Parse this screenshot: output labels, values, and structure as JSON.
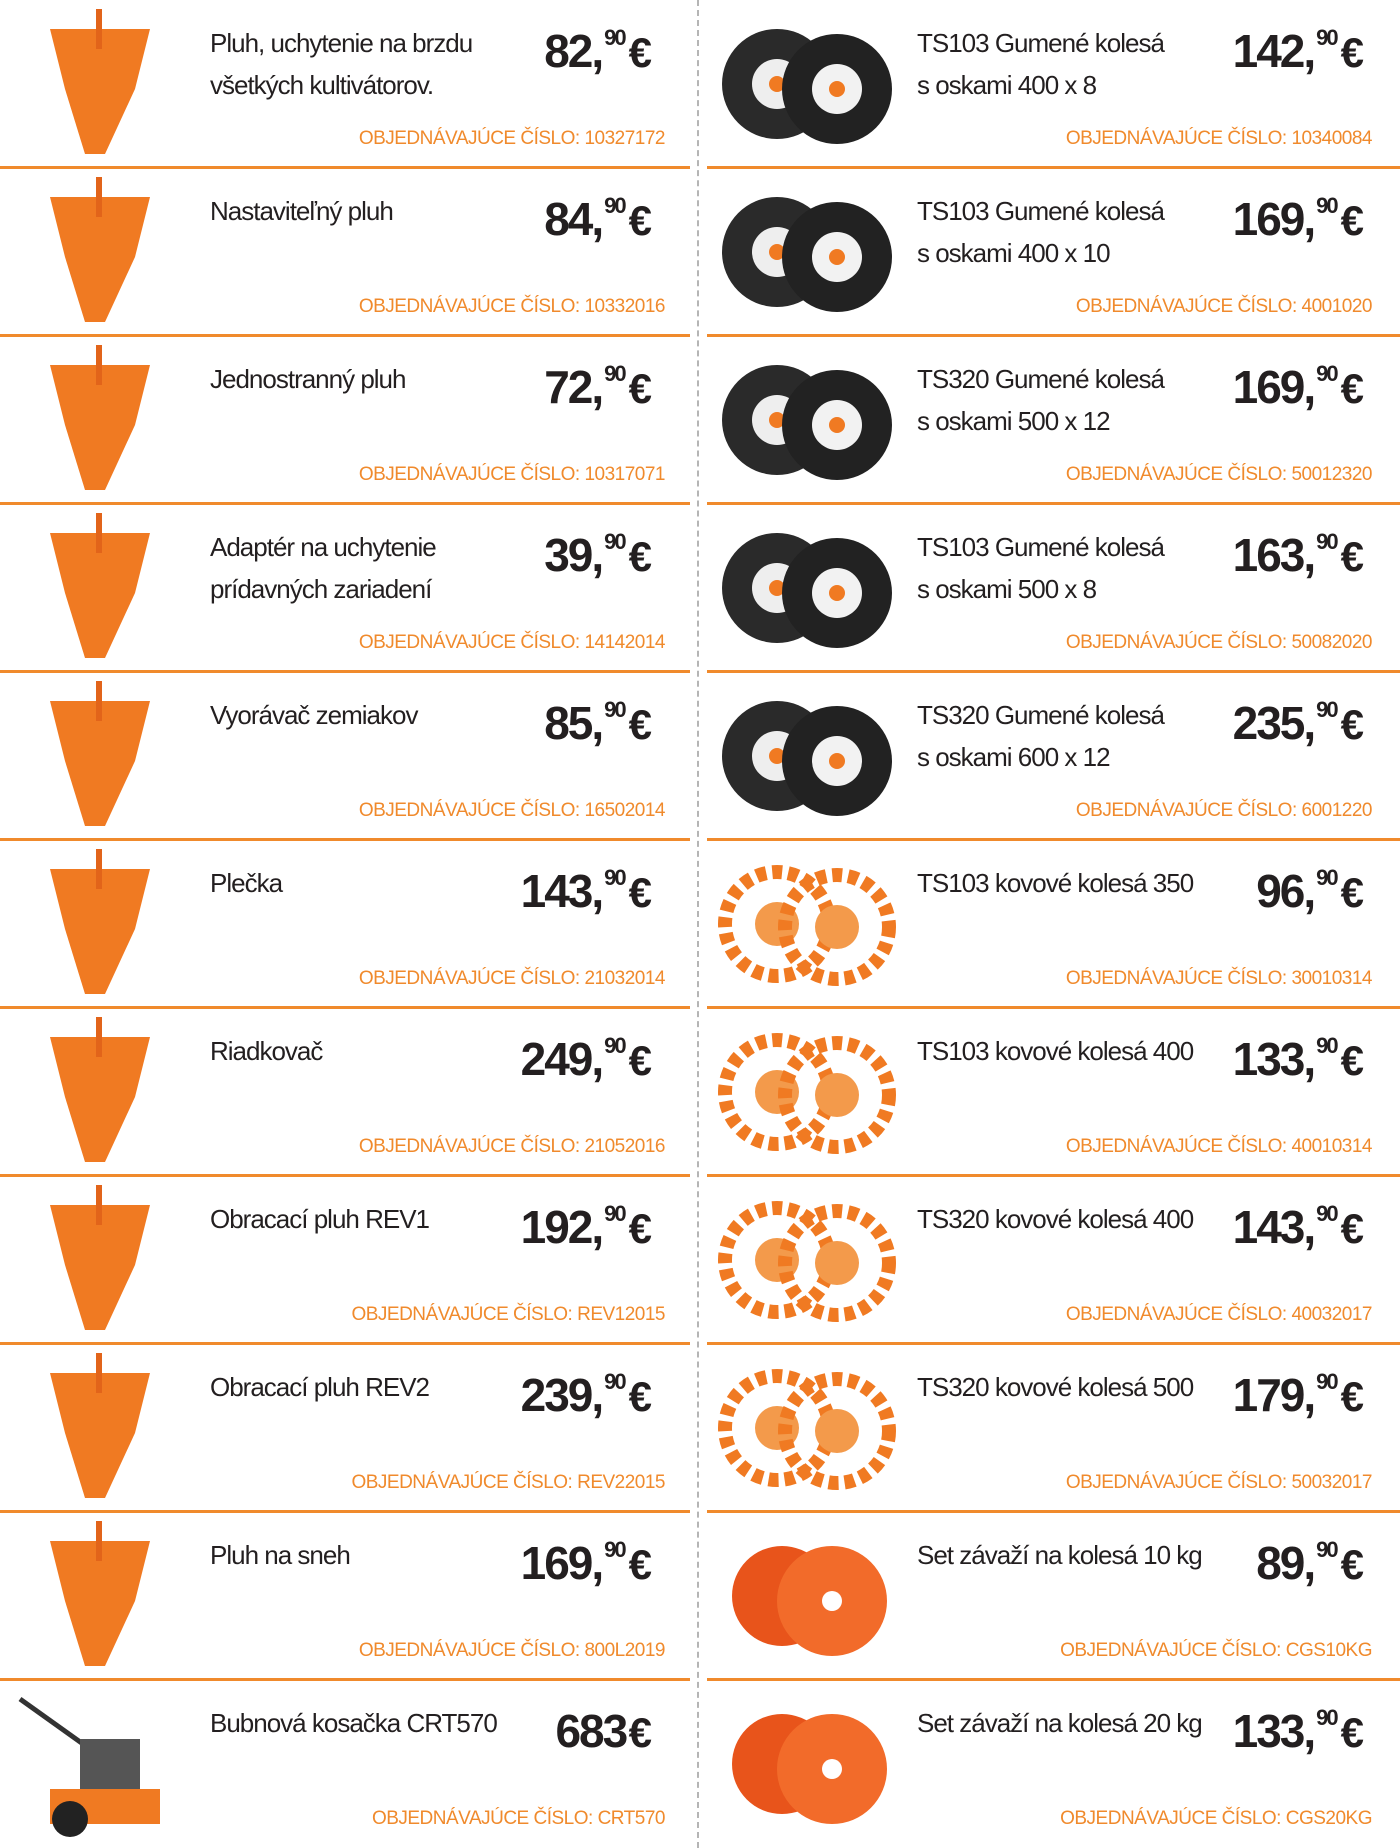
{
  "left": [
    {
      "name": [
        "Pluh, uchytenie na brzdu",
        "všetkých kultivátorov."
      ],
      "price": {
        "main": "82,",
        "cents": "90",
        "currency": "€"
      },
      "order": "OBJEDNÁVAJÚCE ČÍSLO: 10327172"
    },
    {
      "name": [
        "Nastaviteľný pluh"
      ],
      "price": {
        "main": "84,",
        "cents": "90",
        "currency": "€"
      },
      "order": "OBJEDNÁVAJÚCE ČÍSLO: 10332016"
    },
    {
      "name": [
        "Jednostranný pluh"
      ],
      "price": {
        "main": "72,",
        "cents": "90",
        "currency": "€"
      },
      "order": "OBJEDNÁVAJÚCE ČÍSLO: 10317071"
    },
    {
      "name": [
        "Adaptér na uchytenie",
        "prídavných zariadení"
      ],
      "price": {
        "main": "39,",
        "cents": "90",
        "currency": "€"
      },
      "order": "OBJEDNÁVAJÚCE ČÍSLO: 14142014"
    },
    {
      "name": [
        "Vyorávač zemiakov"
      ],
      "price": {
        "main": "85,",
        "cents": "90",
        "currency": "€"
      },
      "order": "OBJEDNÁVAJÚCE ČÍSLO: 16502014"
    },
    {
      "name": [
        "Plečka"
      ],
      "price": {
        "main": "143,",
        "cents": "90",
        "currency": "€"
      },
      "order": "OBJEDNÁVAJÚCE ČÍSLO: 21032014"
    },
    {
      "name": [
        "Riadkovač"
      ],
      "price": {
        "main": "249,",
        "cents": "90",
        "currency": "€"
      },
      "order": "OBJEDNÁVAJÚCE ČÍSLO: 21052016"
    },
    {
      "name": [
        "Obracací pluh REV1"
      ],
      "price": {
        "main": "192,",
        "cents": "90",
        "currency": "€"
      },
      "order": "OBJEDNÁVAJÚCE ČÍSLO: REV12015"
    },
    {
      "name": [
        "Obracací pluh REV2"
      ],
      "price": {
        "main": "239,",
        "cents": "90",
        "currency": "€"
      },
      "order": "OBJEDNÁVAJÚCE ČÍSLO: REV22015"
    },
    {
      "name": [
        "Pluh na sneh"
      ],
      "price": {
        "main": "169,",
        "cents": "90",
        "currency": "€"
      },
      "order": "OBJEDNÁVAJÚCE ČÍSLO: 800L2019"
    },
    {
      "name": [
        "Bubnová kosačka CRT570"
      ],
      "price": {
        "main": "683",
        "currency": "€"
      },
      "order": "OBJEDNÁVAJÚCE ČÍSLO: CRT570"
    }
  ],
  "right": [
    {
      "name": [
        "TS103 Gumené kolesá",
        "s oskami 400 x 8"
      ],
      "price": {
        "main": "142,",
        "cents": "90",
        "currency": "€"
      },
      "order": "OBJEDNÁVAJÚCE ČÍSLO:  10340084"
    },
    {
      "name": [
        "TS103 Gumené kolesá",
        "s oskami 400 x 10"
      ],
      "price": {
        "main": "169,",
        "cents": "90",
        "currency": "€"
      },
      "order": "OBJEDNÁVAJÚCE ČÍSLO: 4001020"
    },
    {
      "name": [
        "TS320 Gumené kolesá",
        "s oskami 500 x 12"
      ],
      "price": {
        "main": "169,",
        "cents": "90",
        "currency": "€"
      },
      "order": "OBJEDNÁVAJÚCE ČÍSLO: 50012320"
    },
    {
      "name": [
        "TS103 Gumené kolesá",
        "s oskami 500 x 8"
      ],
      "price": {
        "main": "163,",
        "cents": "90",
        "currency": "€"
      },
      "order": "OBJEDNÁVAJÚCE ČÍSLO: 50082020"
    },
    {
      "name": [
        "TS320 Gumené kolesá",
        "s oskami 600 x 12"
      ],
      "price": {
        "main": "235,",
        "cents": "90",
        "currency": "€"
      },
      "order": "OBJEDNÁVAJÚCE ČÍSLO: 6001220"
    },
    {
      "name": [
        "TS103 kovové kolesá 350"
      ],
      "price": {
        "main": "96,",
        "cents": "90",
        "currency": "€"
      },
      "order": "OBJEDNÁVAJÚCE ČÍSLO:  30010314"
    },
    {
      "name": [
        "TS103 kovové kolesá 400"
      ],
      "price": {
        "main": "133,",
        "cents": "90",
        "currency": "€"
      },
      "order": "OBJEDNÁVAJÚCE ČÍSLO: 40010314"
    },
    {
      "name": [
        "TS320 kovové kolesá 400"
      ],
      "price": {
        "main": "143,",
        "cents": "90",
        "currency": "€"
      },
      "order": "OBJEDNÁVAJÚCE ČÍSLO: 40032017"
    },
    {
      "name": [
        "TS320 kovové kolesá 500"
      ],
      "price": {
        "main": "179,",
        "cents": "90",
        "currency": "€"
      },
      "order": "OBJEDNÁVAJÚCE ČÍSLO: 50032017"
    },
    {
      "name": [
        "Set závaží na kolesá 10 kg"
      ],
      "price": {
        "main": "89,",
        "cents": "90",
        "currency": "€"
      },
      "order": "OBJEDNÁVAJÚCE ČÍSLO:  CGS10KG"
    },
    {
      "name": [
        "Set závaží na kolesá 20 kg"
      ],
      "price": {
        "main": "133,",
        "cents": "90",
        "currency": "€"
      },
      "order": "OBJEDNÁVAJÚCE ČÍSLO: CGS20KG"
    }
  ]
}
